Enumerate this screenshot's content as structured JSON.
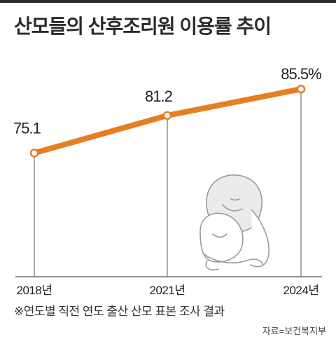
{
  "title": "산모들의 산후조리원 이용률 추이",
  "note": "※연도별 직전 연도 출산 산모 표본 조사 결과",
  "source": "자료=보건복지부",
  "colors": {
    "line": "#e67e22",
    "axis": "#555555",
    "text": "#222222"
  },
  "chart_data": {
    "type": "line",
    "categories": [
      "2018년",
      "2021년",
      "2024년"
    ],
    "values": [
      75.1,
      81.2,
      85.5
    ],
    "value_labels": [
      "75.1",
      "81.2",
      "85.5%"
    ],
    "title": "산모들의 산후조리원 이용률 추이",
    "xlabel": "",
    "ylabel": "",
    "ylim": [
      55,
      92
    ],
    "grid": false
  }
}
